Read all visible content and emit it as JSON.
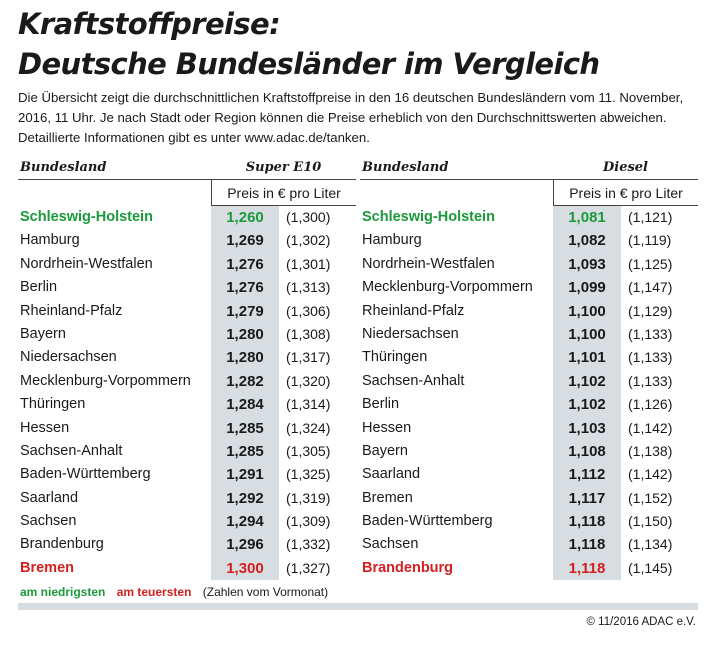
{
  "title_line1": "Kraftstoffpreise:",
  "title_line2": "Deutsche Bundesländer im Vergleich",
  "description": "Die Übersicht zeigt die durchschnittlichen Kraftstoffpreise in den 16 deutschen Bundesländern vom 11. November, 2016, 11 Uhr. Je nach Stadt oder Region können die Preise erheblich von den Durchschnittswerten abweichen. Detaillierte Informationen gibt es unter www.adac.de/tanken.",
  "colors": {
    "lowest": "#1a9a3a",
    "highest": "#d42020",
    "shade": "#d8dde1"
  },
  "tables": [
    {
      "state_header": "Bundesland",
      "fuel_header": "Super E10",
      "unit_header": "Preis in € pro Liter",
      "rows": [
        {
          "state": "Schleswig-Holstein",
          "price": "1,260",
          "prev": "(1,300)",
          "mark": "low"
        },
        {
          "state": "Hamburg",
          "price": "1,269",
          "prev": "(1,302)",
          "mark": ""
        },
        {
          "state": "Nordrhein-Westfalen",
          "price": "1,276",
          "prev": "(1,301)",
          "mark": ""
        },
        {
          "state": "Berlin",
          "price": "1,276",
          "prev": "(1,313)",
          "mark": ""
        },
        {
          "state": "Rheinland-Pfalz",
          "price": "1,279",
          "prev": "(1,306)",
          "mark": ""
        },
        {
          "state": "Bayern",
          "price": "1,280",
          "prev": "(1,308)",
          "mark": ""
        },
        {
          "state": "Niedersachsen",
          "price": "1,280",
          "prev": "(1,317)",
          "mark": ""
        },
        {
          "state": "Mecklenburg-Vorpommern",
          "price": "1,282",
          "prev": "(1,320)",
          "mark": ""
        },
        {
          "state": "Thüringen",
          "price": "1,284",
          "prev": "(1,314)",
          "mark": ""
        },
        {
          "state": "Hessen",
          "price": "1,285",
          "prev": "(1,324)",
          "mark": ""
        },
        {
          "state": "Sachsen-Anhalt",
          "price": "1,285",
          "prev": "(1,305)",
          "mark": ""
        },
        {
          "state": "Baden-Württemberg",
          "price": "1,291",
          "prev": "(1,325)",
          "mark": ""
        },
        {
          "state": "Saarland",
          "price": "1,292",
          "prev": "(1,319)",
          "mark": ""
        },
        {
          "state": "Sachsen",
          "price": "1,294",
          "prev": "(1,309)",
          "mark": ""
        },
        {
          "state": "Brandenburg",
          "price": "1,296",
          "prev": "(1,332)",
          "mark": ""
        },
        {
          "state": "Bremen",
          "price": "1,300",
          "prev": "(1,327)",
          "mark": "high"
        }
      ]
    },
    {
      "state_header": "Bundesland",
      "fuel_header": "Diesel",
      "unit_header": "Preis in € pro Liter",
      "rows": [
        {
          "state": "Schleswig-Holstein",
          "price": "1,081",
          "prev": "(1,121)",
          "mark": "low"
        },
        {
          "state": "Hamburg",
          "price": "1,082",
          "prev": "(1,119)",
          "mark": ""
        },
        {
          "state": "Nordrhein-Westfalen",
          "price": "1,093",
          "prev": "(1,125)",
          "mark": ""
        },
        {
          "state": "Mecklenburg-Vorpommern",
          "price": "1,099",
          "prev": "(1,147)",
          "mark": ""
        },
        {
          "state": "Rheinland-Pfalz",
          "price": "1,100",
          "prev": "(1,129)",
          "mark": ""
        },
        {
          "state": "Niedersachsen",
          "price": "1,100",
          "prev": "(1,133)",
          "mark": ""
        },
        {
          "state": "Thüringen",
          "price": "1,101",
          "prev": "(1,133)",
          "mark": ""
        },
        {
          "state": "Sachsen-Anhalt",
          "price": "1,102",
          "prev": "(1,133)",
          "mark": ""
        },
        {
          "state": "Berlin",
          "price": "1,102",
          "prev": "(1,126)",
          "mark": ""
        },
        {
          "state": "Hessen",
          "price": "1,103",
          "prev": "(1,142)",
          "mark": ""
        },
        {
          "state": "Bayern",
          "price": "1,108",
          "prev": "(1,138)",
          "mark": ""
        },
        {
          "state": "Saarland",
          "price": "1,112",
          "prev": "(1,142)",
          "mark": ""
        },
        {
          "state": "Bremen",
          "price": "1,117",
          "prev": "(1,152)",
          "mark": ""
        },
        {
          "state": "Baden-Württemberg",
          "price": "1,118",
          "prev": "(1,150)",
          "mark": ""
        },
        {
          "state": "Sachsen",
          "price": "1,118",
          "prev": "(1,134)",
          "mark": ""
        },
        {
          "state": "Brandenburg",
          "price": "1,118",
          "prev": "(1,145)",
          "mark": "high"
        }
      ]
    }
  ],
  "legend": {
    "lowest": "am niedrigsten",
    "highest": "am teuersten",
    "note": "(Zahlen vom Vormonat)"
  },
  "copyright": "© 11/2016 ADAC e.V."
}
